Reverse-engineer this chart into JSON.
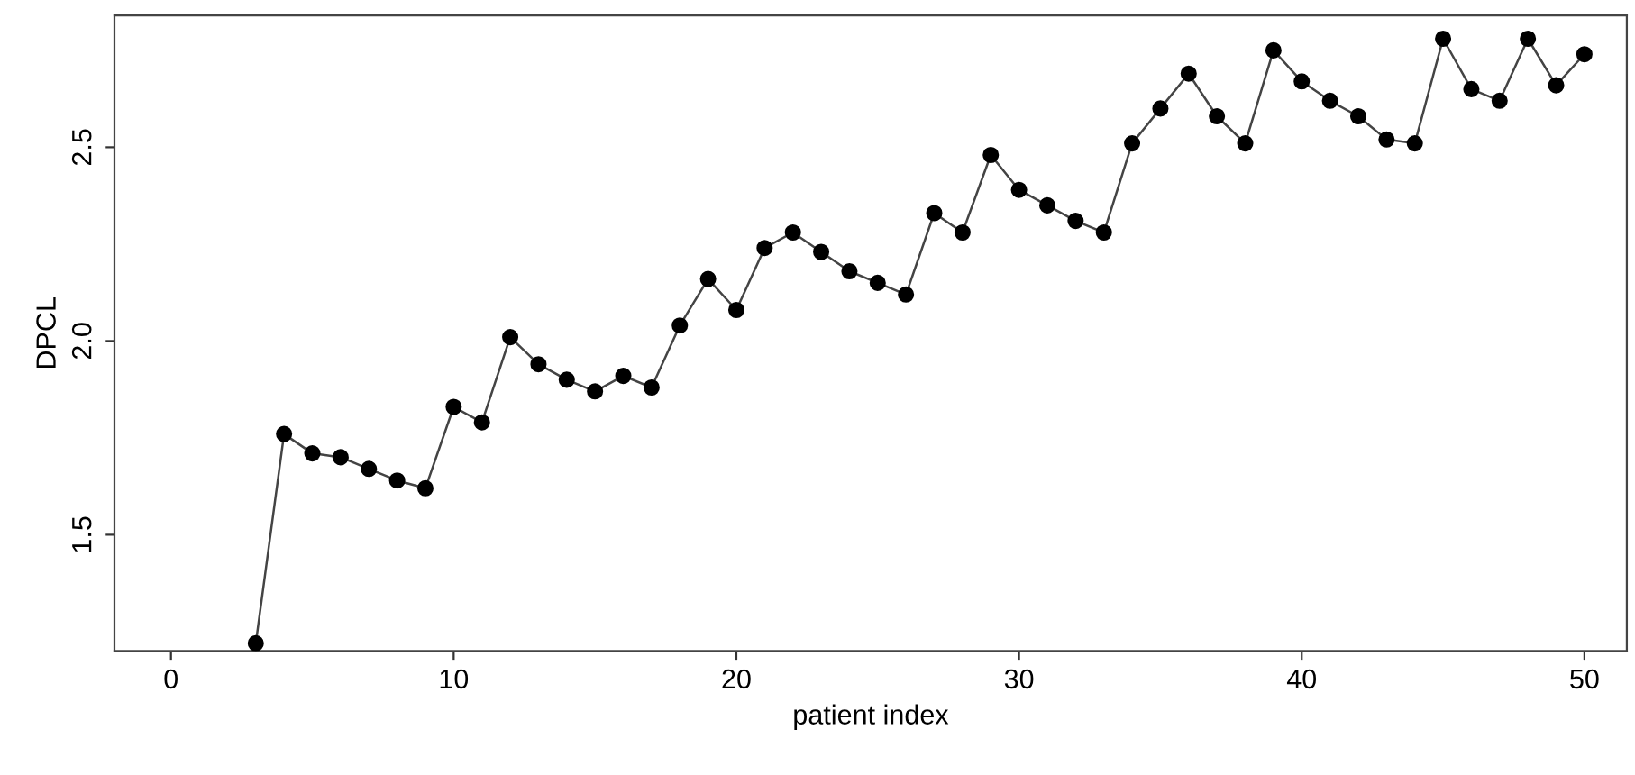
{
  "chart_data": {
    "type": "line",
    "xlabel": "patient index",
    "ylabel": "DPCL",
    "x": [
      3,
      4,
      5,
      6,
      7,
      8,
      9,
      10,
      11,
      12,
      13,
      14,
      15,
      16,
      17,
      18,
      19,
      20,
      21,
      22,
      23,
      24,
      25,
      26,
      27,
      28,
      29,
      30,
      31,
      32,
      33,
      34,
      35,
      36,
      37,
      38,
      39,
      40,
      41,
      42,
      43,
      44,
      45,
      46,
      47,
      48,
      49,
      50
    ],
    "series": [
      {
        "color": "#000000",
        "values": [
          1.22,
          1.76,
          1.71,
          1.7,
          1.67,
          1.64,
          1.62,
          1.83,
          1.79,
          2.01,
          1.94,
          1.9,
          1.87,
          1.91,
          1.88,
          2.04,
          2.16,
          2.08,
          2.24,
          2.28,
          2.23,
          2.18,
          2.15,
          2.12,
          2.33,
          2.28,
          2.48,
          2.39,
          2.35,
          2.31,
          2.28,
          2.51,
          2.6,
          2.69,
          2.58,
          2.51,
          2.75,
          2.67,
          2.62,
          2.58,
          2.52,
          2.51,
          2.78,
          2.65,
          2.62,
          2.78,
          2.66,
          2.74
        ]
      }
    ],
    "xlim": [
      -2,
      51.5
    ],
    "ylim": [
      1.2,
      2.84
    ],
    "xticks": [
      0,
      10,
      20,
      30,
      40,
      50
    ],
    "yticks": [
      {
        "value": 1.5,
        "label": "1.5"
      },
      {
        "value": 2.0,
        "label": "2.0"
      },
      {
        "value": 2.5,
        "label": "2.5"
      }
    ],
    "marker": "circle",
    "line_style": "solid",
    "grid": false,
    "legend": false
  }
}
